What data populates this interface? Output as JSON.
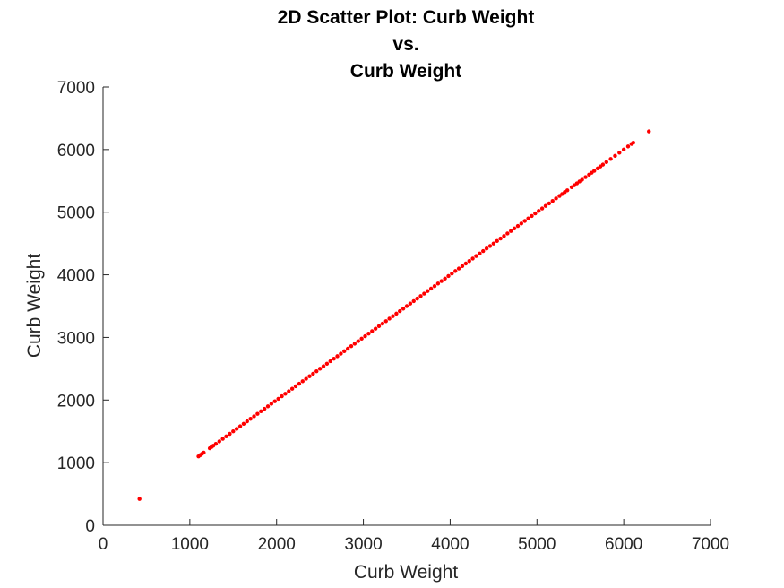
{
  "chart_data": {
    "type": "scatter",
    "title_lines": [
      "2D Scatter Plot: Curb Weight",
      "vs.",
      "Curb Weight"
    ],
    "xlabel": "Curb Weight",
    "ylabel": "Curb Weight",
    "xlim": [
      0,
      7000
    ],
    "ylim": [
      0,
      7000
    ],
    "xticks": [
      0,
      1000,
      2000,
      3000,
      4000,
      5000,
      6000,
      7000
    ],
    "yticks": [
      0,
      1000,
      2000,
      3000,
      4000,
      5000,
      6000,
      7000
    ],
    "x_tick_labels": [
      "0",
      "1000",
      "2000",
      "3000",
      "4000",
      "5000",
      "6000",
      "7000"
    ],
    "y_tick_labels": [
      "0",
      "1000",
      "2000",
      "3000",
      "4000",
      "5000",
      "6000",
      "7000"
    ],
    "grid": false,
    "marker_color": "#ff0000",
    "series": [
      {
        "x": [
          420,
          1100,
          1120,
          1140,
          1160,
          1230,
          1250,
          1270,
          1300,
          1340,
          1380,
          1420,
          1460,
          1500,
          1540,
          1580,
          1620,
          1660,
          1700,
          1740,
          1780,
          1820,
          1860,
          1900,
          1940,
          1980,
          2020,
          2060,
          2100,
          2140,
          2180,
          2220,
          2260,
          2300,
          2340,
          2380,
          2420,
          2460,
          2500,
          2540,
          2580,
          2620,
          2660,
          2700,
          2740,
          2780,
          2820,
          2860,
          2900,
          2940,
          2980,
          3020,
          3060,
          3100,
          3140,
          3180,
          3220,
          3260,
          3300,
          3340,
          3380,
          3420,
          3460,
          3500,
          3540,
          3580,
          3620,
          3660,
          3700,
          3740,
          3780,
          3820,
          3860,
          3900,
          3940,
          3980,
          4020,
          4060,
          4100,
          4140,
          4180,
          4220,
          4260,
          4300,
          4340,
          4380,
          4420,
          4460,
          4500,
          4540,
          4580,
          4620,
          4660,
          4700,
          4740,
          4780,
          4820,
          4860,
          4900,
          4940,
          4980,
          5020,
          5060,
          5100,
          5140,
          5180,
          5220,
          5260,
          5290,
          5320,
          5350,
          5400,
          5430,
          5460,
          5490,
          5520,
          5560,
          5600,
          5630,
          5660,
          5700,
          5730,
          5760,
          5800,
          5850,
          5900,
          5950,
          6000,
          6050,
          6090,
          6110,
          6290
        ],
        "y": [
          420,
          1100,
          1120,
          1140,
          1160,
          1230,
          1250,
          1270,
          1300,
          1340,
          1380,
          1420,
          1460,
          1500,
          1540,
          1580,
          1620,
          1660,
          1700,
          1740,
          1780,
          1820,
          1860,
          1900,
          1940,
          1980,
          2020,
          2060,
          2100,
          2140,
          2180,
          2220,
          2260,
          2300,
          2340,
          2380,
          2420,
          2460,
          2500,
          2540,
          2580,
          2620,
          2660,
          2700,
          2740,
          2780,
          2820,
          2860,
          2900,
          2940,
          2980,
          3020,
          3060,
          3100,
          3140,
          3180,
          3220,
          3260,
          3300,
          3340,
          3380,
          3420,
          3460,
          3500,
          3540,
          3580,
          3620,
          3660,
          3700,
          3740,
          3780,
          3820,
          3860,
          3900,
          3940,
          3980,
          4020,
          4060,
          4100,
          4140,
          4180,
          4220,
          4260,
          4300,
          4340,
          4380,
          4420,
          4460,
          4500,
          4540,
          4580,
          4620,
          4660,
          4700,
          4740,
          4780,
          4820,
          4860,
          4900,
          4940,
          4980,
          5020,
          5060,
          5100,
          5140,
          5180,
          5220,
          5260,
          5290,
          5320,
          5350,
          5400,
          5430,
          5460,
          5490,
          5520,
          5560,
          5600,
          5630,
          5660,
          5700,
          5730,
          5760,
          5800,
          5850,
          5900,
          5950,
          6000,
          6050,
          6090,
          6110,
          6290
        ]
      }
    ]
  }
}
